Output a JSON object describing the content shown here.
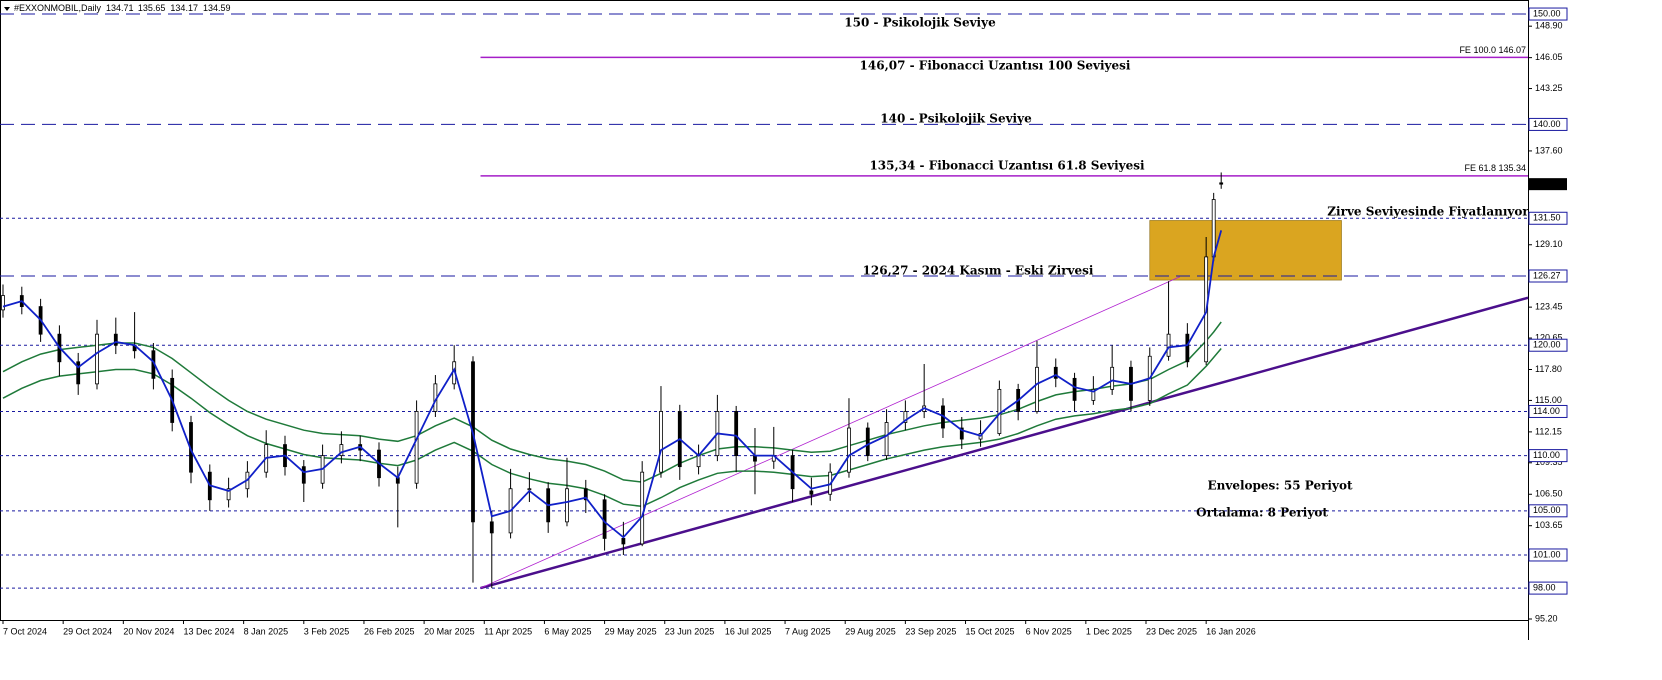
{
  "chart_data": {
    "type": "candlestick",
    "header": "#EXXONMOBIL,Daily",
    "xlim": [
      -0.8,
      405.6
    ],
    "ylim": [
      95.11,
      151.09
    ],
    "xticks": [
      {
        "value": 0,
        "label": "7 Oct 2024"
      },
      {
        "value": 16,
        "label": "29 Oct 2024"
      },
      {
        "value": 32,
        "label": "20 Nov 2024"
      },
      {
        "value": 48,
        "label": "13 Dec 2024"
      },
      {
        "value": 64,
        "label": "8 Jan 2025"
      },
      {
        "value": 80,
        "label": "3 Feb 2025"
      },
      {
        "value": 96,
        "label": "26 Feb 2025"
      },
      {
        "value": 112,
        "label": "20 Mar 2025"
      },
      {
        "value": 128,
        "label": "11 Apr 2025"
      },
      {
        "value": 144,
        "label": "6 May 2025"
      },
      {
        "value": 160,
        "label": "29 May 2025"
      },
      {
        "value": 176,
        "label": "23 Jun 2025"
      },
      {
        "value": 192,
        "label": "16 Jul 2025"
      },
      {
        "value": 208,
        "label": "7 Aug 2025"
      },
      {
        "value": 224,
        "label": "29 Aug 2025"
      },
      {
        "value": 240,
        "label": "23 Sep 2025"
      },
      {
        "value": 256,
        "label": "15 Oct 2025"
      },
      {
        "value": 272,
        "label": "6 Nov 2025"
      },
      {
        "value": 288,
        "label": "1 Dec 2025"
      },
      {
        "value": 304,
        "label": "23 Dec 2025"
      },
      {
        "value": 320,
        "label": "16 Jan 2026"
      }
    ],
    "yticks": [
      {
        "value": 148.9,
        "label": "148.90"
      },
      {
        "value": 146.05,
        "label": "146.05"
      },
      {
        "value": 143.25,
        "label": "143.25"
      },
      {
        "value": 137.6,
        "label": "137.60"
      },
      {
        "value": 129.1,
        "label": "129.10"
      },
      {
        "value": 123.45,
        "label": "123.45"
      },
      {
        "value": 120.65,
        "label": "120.65"
      },
      {
        "value": 117.8,
        "label": "117.80"
      },
      {
        "value": 115,
        "label": "115.00"
      },
      {
        "value": 112.15,
        "label": "112.15"
      },
      {
        "value": 109.35,
        "label": "109.35"
      },
      {
        "value": 106.5,
        "label": "106.50"
      },
      {
        "value": 103.65,
        "label": "103.65"
      },
      {
        "value": 95.2,
        "label": "95.20"
      }
    ],
    "x": [
      0,
      5,
      10,
      15,
      20,
      25,
      30,
      35,
      40,
      45,
      50,
      55,
      60,
      65,
      70,
      75,
      80,
      85,
      90,
      95,
      100,
      105,
      110,
      115,
      120,
      125,
      130,
      135,
      140,
      145,
      150,
      155,
      160,
      165,
      170,
      175,
      180,
      185,
      190,
      195,
      200,
      205,
      210,
      215,
      220,
      225,
      230,
      235,
      240,
      245,
      250,
      255,
      260,
      265,
      270,
      275,
      280,
      285,
      290,
      295,
      300,
      305,
      310,
      315,
      320,
      322,
      324
    ],
    "open": [
      123.2,
      124.5,
      123.5,
      121,
      118.5,
      116.5,
      121,
      120,
      119.5,
      117,
      113,
      108.5,
      106,
      107,
      108.5,
      111,
      109,
      107.5,
      110,
      111,
      110.5,
      108,
      107.5,
      114,
      116.5,
      118.5,
      104,
      103,
      107,
      107,
      104,
      107,
      106,
      102.5,
      102,
      108.5,
      114,
      109,
      110,
      114,
      110,
      109.5,
      110,
      106.8,
      106.5,
      108.5,
      112.5,
      110,
      113,
      114,
      114.5,
      112.5,
      111.5,
      112,
      116,
      114,
      118,
      117,
      115,
      116,
      118,
      115,
      119,
      121,
      118.5,
      128,
      134.71
    ],
    "high": [
      125.5,
      125.3,
      124.2,
      121.8,
      119.3,
      122.3,
      122.5,
      123,
      120.2,
      117.8,
      113.6,
      109.2,
      108,
      109.5,
      112.3,
      111.8,
      109.6,
      111,
      112.2,
      111.8,
      111.2,
      109,
      115,
      117.3,
      120,
      119,
      105,
      108.8,
      108.5,
      107.6,
      109.8,
      107.8,
      106.5,
      104,
      109.5,
      116.3,
      114.6,
      111,
      115.5,
      114.5,
      112.5,
      112.6,
      110.5,
      108,
      109.3,
      115.2,
      113,
      114.2,
      115,
      118.3,
      115.2,
      113.5,
      113.2,
      116.8,
      116.5,
      120.4,
      118.8,
      117.5,
      117.2,
      120,
      118.6,
      119.8,
      125.8,
      122,
      129.8,
      133.8,
      135.65
    ],
    "low": [
      122.5,
      122.8,
      120.3,
      117.2,
      115.5,
      116,
      119.2,
      118.8,
      116,
      112.2,
      107.5,
      105,
      105.3,
      106.2,
      108,
      108.2,
      105.8,
      107,
      109.3,
      109.5,
      107.2,
      103.5,
      107,
      113.5,
      116,
      98.5,
      98,
      102.5,
      105.8,
      103,
      103.6,
      104.8,
      101.4,
      101,
      101.8,
      108,
      107.8,
      108.3,
      109.5,
      108.5,
      106.5,
      108.8,
      105.8,
      105.5,
      105.9,
      108,
      109.5,
      109.6,
      112.3,
      113.4,
      111.6,
      110.6,
      110.8,
      111.8,
      113.2,
      113.8,
      116.2,
      114,
      114.6,
      115.5,
      114,
      114.5,
      118.6,
      118,
      118.2,
      127.6,
      134.17
    ],
    "close": [
      124.5,
      123.5,
      121,
      118.5,
      116.5,
      121,
      120,
      119.5,
      117,
      113,
      108.5,
      106,
      107,
      108.5,
      111,
      109,
      107.5,
      110,
      111,
      110.5,
      108,
      107.5,
      114,
      116.5,
      118.5,
      104,
      103,
      107,
      107,
      104,
      107,
      106,
      102.5,
      102,
      108.5,
      114,
      109,
      110,
      114,
      110,
      109.5,
      110,
      107,
      106.5,
      108.5,
      112.5,
      110,
      113,
      114,
      114.5,
      112.5,
      111.5,
      112,
      116,
      114,
      118,
      117,
      115,
      116,
      118,
      115,
      119,
      121,
      118.5,
      128,
      133.2,
      134.59
    ],
    "series": [
      {
        "name": "Ortalama: 8 Periyot",
        "color": "#1020c8",
        "values": [
          123.5,
          124,
          122.3,
          119.8,
          118,
          119.3,
          120.3,
          120,
          118.5,
          115,
          110.5,
          107.3,
          106.8,
          107.8,
          109.8,
          110,
          108.5,
          108.8,
          110.3,
          110.8,
          109.3,
          108,
          111.5,
          115,
          117.8,
          112,
          104.5,
          105,
          106.8,
          105.5,
          105.8,
          106.2,
          104,
          102.6,
          104.5,
          110.5,
          111.5,
          110,
          112,
          111.8,
          110,
          110,
          108.5,
          107,
          107.4,
          110,
          111,
          111.8,
          113.2,
          114.3,
          113.6,
          112.3,
          111.8,
          113.8,
          115,
          116.5,
          117.3,
          116.2,
          115.8,
          116.8,
          116.5,
          117,
          119.8,
          120,
          123,
          128,
          130.4
        ]
      },
      {
        "name": "Envelopes: 55 Periyot",
        "color": "#1f7a3a",
        "upper": [
          117.6,
          118.5,
          119.2,
          119.6,
          119.8,
          120,
          120.2,
          120.2,
          119.8,
          118.8,
          117.5,
          116.2,
          115,
          114,
          113.3,
          112.8,
          112.3,
          112,
          111.9,
          111.8,
          111.5,
          111.3,
          111.8,
          112.7,
          113.4,
          112.6,
          111.4,
          110.6,
          110.1,
          109.7,
          109.5,
          109.2,
          108.6,
          107.8,
          107.6,
          108.4,
          109.3,
          110,
          110.6,
          110.8,
          110.8,
          110.7,
          110.5,
          110.3,
          110.4,
          110.9,
          111.4,
          111.9,
          112.3,
          112.7,
          113,
          113.2,
          113.4,
          113.7,
          114.2,
          114.9,
          115.5,
          115.8,
          116,
          116.3,
          116.5,
          116.9,
          117.8,
          118.6,
          120.4,
          121.2,
          122.1
        ],
        "lower": [
          115.2,
          116.1,
          116.8,
          117.2,
          117.4,
          117.6,
          117.8,
          117.8,
          117.4,
          116.4,
          115.2,
          113.9,
          112.8,
          111.8,
          111.1,
          110.6,
          110.1,
          109.8,
          109.7,
          109.6,
          109.3,
          109.1,
          109.6,
          110.5,
          111.2,
          110.4,
          109.2,
          108.4,
          107.9,
          107.5,
          107.3,
          107,
          106.4,
          105.6,
          105.4,
          106.2,
          107.1,
          107.8,
          108.4,
          108.6,
          108.6,
          108.5,
          108.3,
          108.1,
          108.2,
          108.7,
          109.2,
          109.7,
          110.1,
          110.5,
          110.8,
          111,
          111.2,
          111.5,
          112,
          112.7,
          113.3,
          113.6,
          113.8,
          114.1,
          114.3,
          114.7,
          115.6,
          116.4,
          118.1,
          118.9,
          119.7
        ]
      }
    ],
    "levels": [
      {
        "value": 150,
        "label": "150.00",
        "style": "long"
      },
      {
        "value": 140,
        "label": "140.00",
        "style": "long"
      },
      {
        "value": 131.5,
        "label": "131.50",
        "style": "dot"
      },
      {
        "value": 126.27,
        "label": "126.27",
        "style": "long"
      },
      {
        "value": 120,
        "label": "120.00",
        "style": "dot"
      },
      {
        "value": 114,
        "label": "114.00",
        "style": "dot"
      },
      {
        "value": 110,
        "label": "110.00",
        "style": "dot"
      },
      {
        "value": 105,
        "label": "105.00",
        "style": "dot"
      },
      {
        "value": 101,
        "label": "101.00",
        "style": "dot"
      },
      {
        "value": 98,
        "label": "98.00",
        "style": "dot"
      }
    ],
    "level_color": "#1a1aa0",
    "fib_lines": [
      {
        "value": 146.07,
        "from": 127,
        "text": "FE 100.0  146.07",
        "color": "#a51ec8"
      },
      {
        "value": 135.34,
        "from": 127,
        "text": "FE 61.8 135.34",
        "color": "#a51ec8"
      }
    ],
    "trendlines": [
      {
        "x": [
          127,
          405.6
        ],
        "y": [
          98,
          124.3
        ],
        "color": "#4b0f8c",
        "width": 2.5
      },
      {
        "x": [
          127,
          313
        ],
        "y": [
          98,
          126.2
        ],
        "color": "#b020d0",
        "width": 0.8
      }
    ],
    "zone": {
      "x": [
        305,
        356
      ],
      "y": [
        125.9,
        131.3
      ],
      "color": "#daa520"
    },
    "annotations": [
      {
        "text": "150 - Psikolojik Seviye",
        "color": "#1a2fd0"
      },
      {
        "text": "146,07 - Fibonacci Uzantısı 100 Seviyesi",
        "color": "#a51ec8"
      },
      {
        "text": "140 - Psikolojik Seviye",
        "color": "#1a2fd0"
      },
      {
        "text": "135,34 - Fibonacci Uzantısı 61.8 Seviyesi",
        "color": "#a51ec8"
      },
      {
        "text": "Zirve Seviyesinde Fiyatlanıyor",
        "color": "#000000"
      },
      {
        "text": "126,27 - 2024 Kasım - Eski Zirvesi",
        "color": "#000000"
      }
    ]
  }
}
